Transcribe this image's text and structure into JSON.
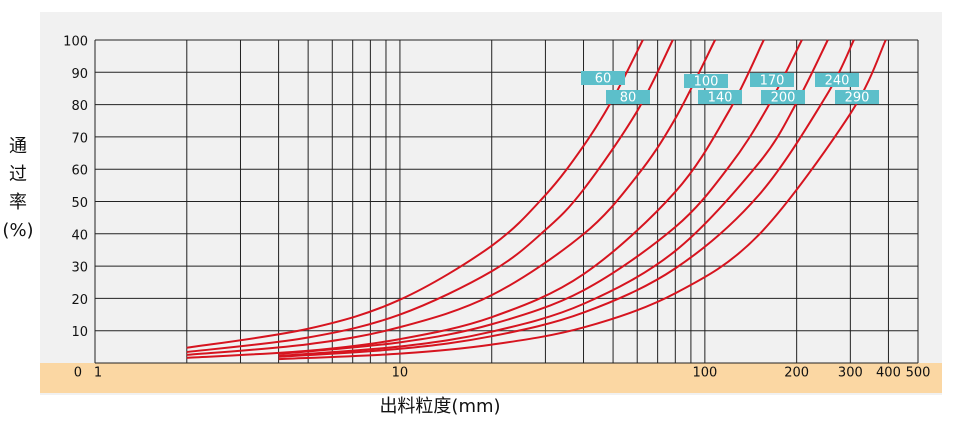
{
  "chart_data": {
    "type": "line",
    "xlabel": "出料粒度(mm)",
    "ylabel_lines": [
      "通",
      "过",
      "率",
      "(%)"
    ],
    "xscale": "log",
    "xlim": [
      1,
      500
    ],
    "ylim": [
      0,
      100
    ],
    "xticks": [
      1,
      10,
      100,
      200,
      300,
      400,
      500
    ],
    "xminor": [
      2,
      3,
      4,
      5,
      6,
      7,
      8,
      9,
      20,
      30,
      40,
      50,
      60,
      70,
      80,
      90
    ],
    "yticks": [
      0,
      10,
      20,
      30,
      40,
      50,
      60,
      70,
      80,
      90,
      100
    ],
    "grid": true,
    "series": [
      {
        "name": "60",
        "color": "#d6141f",
        "x": [
          2,
          5,
          10,
          20,
          30,
          40,
          50,
          62.6
        ],
        "values": [
          4.7,
          10.6,
          19.6,
          36.3,
          52.0,
          67.2,
          81.9,
          100
        ]
      },
      {
        "name": "80",
        "color": "#d6141f",
        "x": [
          2,
          5,
          10,
          20,
          30,
          40,
          60,
          78.5
        ],
        "values": [
          3.4,
          7.9,
          15.0,
          28.4,
          41.2,
          53.7,
          78.0,
          100
        ]
      },
      {
        "name": "100",
        "color": "#d6141f",
        "x": [
          2,
          5,
          10,
          20,
          40,
          60,
          80,
          108
        ],
        "values": [
          2.5,
          5.8,
          11.1,
          21.0,
          39.9,
          58.0,
          75.7,
          100
        ]
      },
      {
        "name": "140",
        "color": "#d6141f",
        "x": [
          2,
          5,
          10,
          20,
          40,
          80,
          120,
          156
        ],
        "values": [
          1.6,
          3.8,
          7.4,
          14.2,
          27.5,
          53.0,
          78.0,
          100
        ]
      },
      {
        "name": "170",
        "color": "#d6141f",
        "x": [
          4,
          10,
          20,
          40,
          80,
          120,
          160,
          208
        ],
        "values": [
          2.8,
          6.4,
          12.0,
          22.5,
          42.1,
          60.8,
          78.9,
          100
        ]
      },
      {
        "name": "200",
        "color": "#d6141f",
        "x": [
          4,
          10,
          20,
          40,
          80,
          150,
          200,
          253
        ],
        "values": [
          2.2,
          5.1,
          9.7,
          18.3,
          34.7,
          61.8,
          80.6,
          100
        ]
      },
      {
        "name": "240",
        "color": "#d6141f",
        "x": [
          4,
          10,
          20,
          40,
          80,
          150,
          250,
          308
        ],
        "values": [
          1.9,
          4.4,
          8.3,
          15.6,
          29.3,
          51.9,
          82.7,
          100
        ]
      },
      {
        "name": "290",
        "color": "#d6141f",
        "x": [
          4,
          10,
          20,
          40,
          80,
          150,
          300,
          392
        ],
        "values": [
          1.2,
          2.9,
          5.7,
          11.0,
          21.6,
          39.6,
          77.2,
          100
        ]
      }
    ]
  }
}
